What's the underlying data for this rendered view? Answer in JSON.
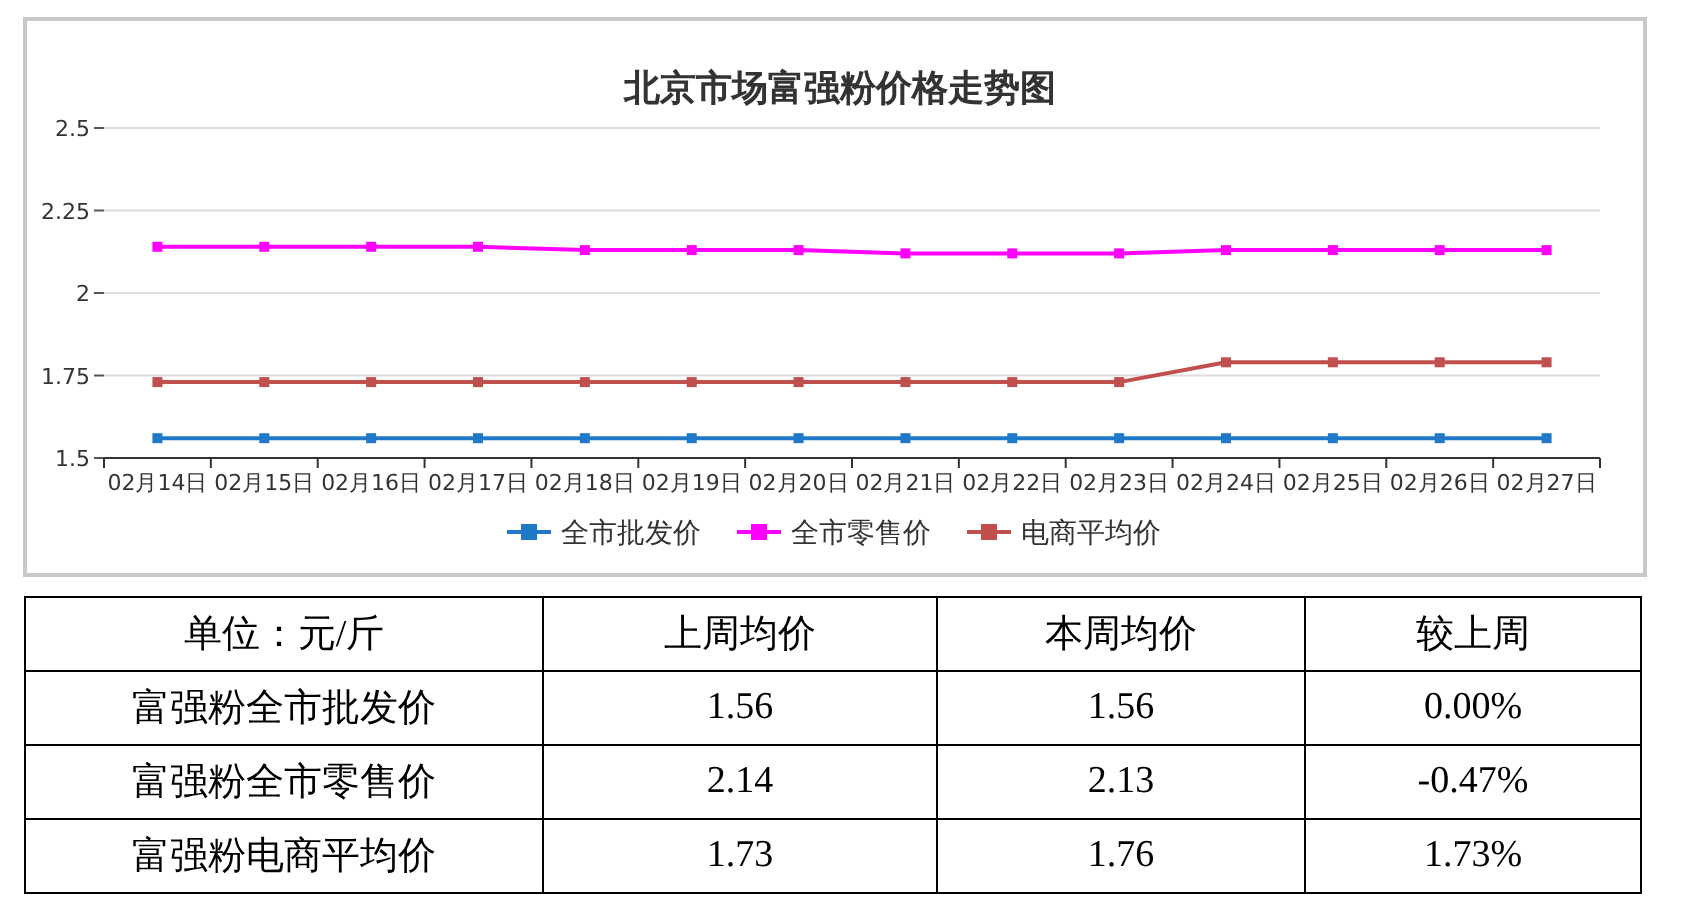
{
  "chart_data": {
    "type": "line",
    "title": "北京市场富强粉价格走势图",
    "categories": [
      "02月14日",
      "02月15日",
      "02月16日",
      "02月17日",
      "02月18日",
      "02月19日",
      "02月20日",
      "02月21日",
      "02月22日",
      "02月23日",
      "02月24日",
      "02月25日",
      "02月26日",
      "02月27日"
    ],
    "series": [
      {
        "name": "全市批发价",
        "color": "#1f78c8",
        "values": [
          1.56,
          1.56,
          1.56,
          1.56,
          1.56,
          1.56,
          1.56,
          1.56,
          1.56,
          1.56,
          1.56,
          1.56,
          1.56,
          1.56
        ]
      },
      {
        "name": "全市零售价",
        "color": "#ff00ff",
        "values": [
          2.14,
          2.14,
          2.14,
          2.14,
          2.13,
          2.13,
          2.13,
          2.12,
          2.12,
          2.12,
          2.13,
          2.13,
          2.13,
          2.13
        ]
      },
      {
        "name": "电商平均价",
        "color": "#c0504d",
        "values": [
          1.73,
          1.73,
          1.73,
          1.73,
          1.73,
          1.73,
          1.73,
          1.73,
          1.73,
          1.73,
          1.79,
          1.79,
          1.79,
          1.79
        ]
      }
    ],
    "ylim": [
      1.5,
      2.5
    ],
    "yticks": [
      1.5,
      1.75,
      2,
      2.25,
      2.5
    ],
    "grid": "y",
    "legend": "bottom",
    "marker": "square",
    "line_style": "solid",
    "annotations": [
      "单位：元/斤",
      "上周均价",
      "本周均价",
      "较上周",
      "富强粉全市批发价",
      "1.56",
      "1.56",
      "0.00%",
      "富强粉全市零售价",
      "2.14",
      "2.13",
      "-0.47%",
      "富强粉电商平均价",
      "1.73",
      "1.76",
      "1.73%"
    ]
  }
}
